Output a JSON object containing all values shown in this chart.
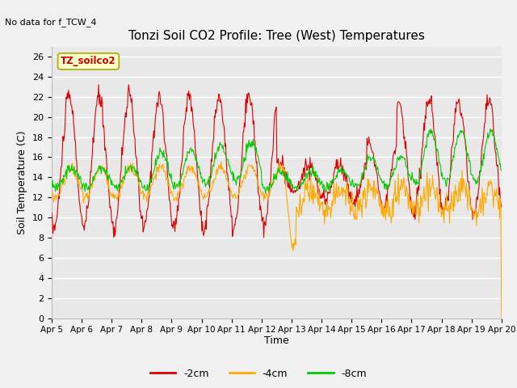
{
  "title": "Tonzi Soil CO2 Profile: Tree (West) Temperatures",
  "no_data_text": "No data for f_TCW_4",
  "ylabel": "Soil Temperature (C)",
  "xlabel": "Time",
  "ylim": [
    0,
    27
  ],
  "yticks": [
    0,
    2,
    4,
    6,
    8,
    10,
    12,
    14,
    16,
    18,
    20,
    22,
    24,
    26
  ],
  "date_labels": [
    "Apr 5",
    "Apr 6",
    "Apr 7",
    "Apr 8",
    "Apr 9",
    "Apr 10",
    "Apr 11",
    "Apr 12",
    "Apr 13",
    "Apr 14",
    "Apr 15",
    "Apr 16",
    "Apr 17",
    "Apr 18",
    "Apr 19",
    "Apr 20"
  ],
  "legend_labels": [
    "-2cm",
    "-4cm",
    "-8cm"
  ],
  "line_colors": [
    "#dd0000",
    "#ffaa00",
    "#00cc00"
  ],
  "inset_label": "TZ_soilco2",
  "inset_bg": "#ffffcc",
  "inset_border": "#aaaa00",
  "plot_bg": "#e8e8e8",
  "fig_bg": "#f0f0f0",
  "grid_color": "#ffffff",
  "n_days": 15,
  "n_per_day": 48
}
